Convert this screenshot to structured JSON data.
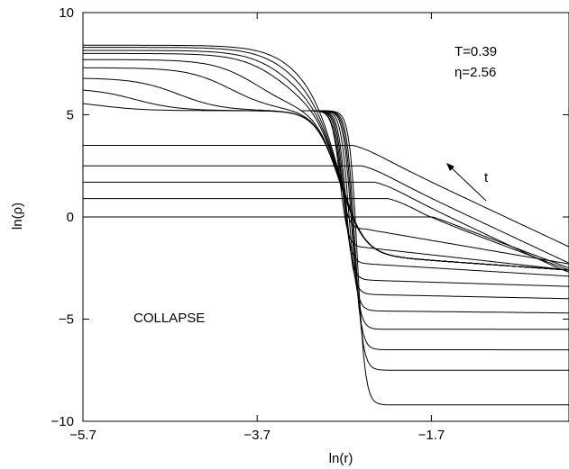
{
  "chart_data": {
    "type": "line",
    "xlabel": "ln(r)",
    "ylabel": "ln(ρ)",
    "xlim": [
      -5.7,
      -0.12
    ],
    "ylim": [
      -10,
      10
    ],
    "x_ticks": [
      -5.7,
      -3.7,
      -1.7
    ],
    "x_tick_labels": [
      "−5.7",
      "−3.7",
      "−1.7"
    ],
    "y_ticks": [
      -10,
      -5,
      0,
      5,
      10
    ],
    "y_tick_labels": [
      "−10",
      "−5",
      "0",
      "5",
      "10"
    ],
    "grid": false,
    "annotations": {
      "temperature": "T=0.39",
      "eta": "η=2.56",
      "phase": "COLLAPSE",
      "time_arrow": "t"
    },
    "line_color": "#000000",
    "curve_sets": {
      "transition": {
        "x_center": -2.75,
        "width": 0.06,
        "curves": [
          {
            "plateau": 8.4,
            "tail_start": -3.1,
            "tail_end": -2.25
          },
          {
            "plateau": 8.3,
            "tail_start": -3.2,
            "tail_end": -2.4
          },
          {
            "plateau": 8.15,
            "tail_start": -3.3,
            "tail_end": -2.55
          },
          {
            "plateau": 8.0,
            "tail_start": -3.4,
            "tail_end": -2.7
          },
          {
            "plateau": 7.7,
            "tail_start": -3.7,
            "tail_end": -2.8
          },
          {
            "plateau": 7.3,
            "tail_start": -4.0,
            "tail_end": -2.85
          },
          {
            "plateau": 6.8,
            "tail_start": -4.6,
            "tail_end": -2.9
          },
          {
            "plateau": 6.3,
            "tail_start": -5.1,
            "tail_end": -2.95
          },
          {
            "plateau": 5.7,
            "tail_start": -5.5,
            "tail_end": -3.0
          }
        ]
      },
      "upper_tails": {
        "comment_free": true,
        "curves": [
          {
            "y_left": 3.5,
            "x_bend": -2.6,
            "y_right": -2.9
          },
          {
            "y_left": 2.5,
            "x_bend": -2.5,
            "y_right": -2.8
          },
          {
            "y_left": 1.7,
            "x_bend": -2.35,
            "y_right": -2.7
          },
          {
            "y_left": 0.9,
            "x_bend": -2.2,
            "y_right": -2.6
          },
          {
            "y_left": 0.0,
            "x_bend": -2.05,
            "y_right": -2.5
          }
        ]
      },
      "lower_plateaus": {
        "curves": [
          {
            "x_drop": -2.75,
            "y_floor": -0.6,
            "y_right": -2.3
          },
          {
            "x_drop": -2.75,
            "y_floor": -1.5,
            "y_right": -2.6
          },
          {
            "x_drop": -2.72,
            "y_floor": -2.3,
            "y_right": -2.9
          },
          {
            "x_drop": -2.7,
            "y_floor": -3.1,
            "y_right": -3.4
          },
          {
            "x_drop": -2.68,
            "y_floor": -3.8,
            "y_right": -4.0
          },
          {
            "x_drop": -2.65,
            "y_floor": -4.6,
            "y_right": -4.7
          },
          {
            "x_drop": -2.62,
            "y_floor": -5.5,
            "y_right": -5.5
          },
          {
            "x_drop": -2.6,
            "y_floor": -6.5,
            "y_right": -6.5
          },
          {
            "x_drop": -2.58,
            "y_floor": -7.5,
            "y_right": -7.5
          },
          {
            "x_drop": -2.55,
            "y_floor": -9.2,
            "y_right": -9.2
          }
        ]
      }
    }
  }
}
